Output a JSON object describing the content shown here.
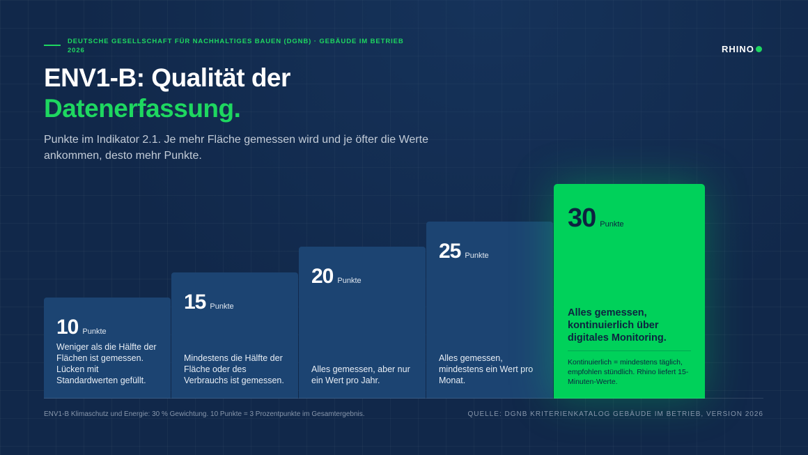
{
  "header": {
    "eyebrow": "DEUTSCHE GESELLSCHAFT FÜR NACHHALTIGES BAUEN (DGNB) · GEBÄUDE IM BETRIEB 2026",
    "logo_text": "RHINO",
    "title_line1": "ENV1-B: Qualität der",
    "title_line2": "Datenerfassung.",
    "subtitle": "Punkte im Indikator 2.1. Je mehr Fläche gemessen wird und je öfter die Werte ankommen, desto mehr Punkte."
  },
  "tiers": [
    {
      "points": "10",
      "unit": "Punkte",
      "description": "Weniger als die Hälfte der Flächen ist gemessen. Lücken mit Standardwerten gefüllt."
    },
    {
      "points": "15",
      "unit": "Punkte",
      "description": "Mindestens die Hälfte der Fläche oder des Verbrauchs ist gemessen."
    },
    {
      "points": "20",
      "unit": "Punkte",
      "description": "Alles gemessen, aber nur ein Wert pro Jahr."
    },
    {
      "points": "25",
      "unit": "Punkte",
      "description": "Alles gemessen, mindestens ein Wert pro Monat."
    },
    {
      "points": "30",
      "unit": "Punkte",
      "description": "Alles gemessen, kontinuierlich über digitales Monitoring.",
      "note": "Kontinuierlich = mindestens täglich, empfohlen stündlich. Rhino liefert 15-Minuten-Werte."
    }
  ],
  "footer": {
    "left": "ENV1-B Klimaschutz und Energie: 30 % Gewichtung. 10 Punkte = 3 Prozentpunkte im Gesamtergebnis.",
    "right": "QUELLE: DGNB KRITERIENKATALOG GEBÄUDE IM BETRIEB, VERSION 2026"
  },
  "colors": {
    "accent": "#1ed760",
    "background": "#11284a",
    "card": "#1c4472",
    "highlight": "#00d15a"
  }
}
